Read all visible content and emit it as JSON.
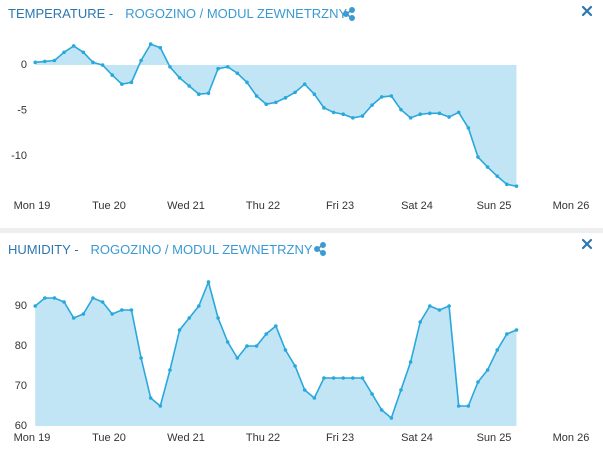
{
  "chart_data": [
    {
      "type": "area",
      "title": "TEMPERATURE -",
      "subtitle": "ROGOZINO / MODUL ZEWNETRZNY",
      "color": "#29a8dc",
      "fill": "#c2e5f5",
      "grid": false,
      "xlim": [
        0,
        168
      ],
      "xticks": [
        {
          "value": 0,
          "label": "Mon 19"
        },
        {
          "value": 24,
          "label": "Tue 20"
        },
        {
          "value": 48,
          "label": "Wed 21"
        },
        {
          "value": 72,
          "label": "Thu 22"
        },
        {
          "value": 96,
          "label": "Fri 23"
        },
        {
          "value": 120,
          "label": "Sat 24"
        },
        {
          "value": 144,
          "label": "Sun 25"
        },
        {
          "value": 168,
          "label": "Mon 26"
        }
      ],
      "ylim": [
        -13.5,
        3.3
      ],
      "yticks": [
        -10,
        -5,
        0
      ],
      "x": [
        1,
        4,
        7,
        10,
        13,
        16,
        19,
        22,
        25,
        28,
        31,
        34,
        37,
        40,
        43,
        46,
        49,
        52,
        55,
        58,
        61,
        64,
        67,
        70,
        73,
        76,
        79,
        82,
        85,
        88,
        91,
        94,
        97,
        100,
        103,
        106,
        109,
        112,
        115,
        118,
        121,
        124,
        127,
        130,
        133,
        136,
        139,
        142,
        145,
        148,
        151
      ],
      "values": [
        0.3,
        0.4,
        0.5,
        1.4,
        2.1,
        1.4,
        0.3,
        0,
        -1.1,
        -2.1,
        -1.9,
        0.5,
        2.3,
        1.9,
        -0.2,
        -1.4,
        -2.3,
        -3.2,
        -3.1,
        -0.4,
        -0.2,
        -0.9,
        -1.9,
        -3.4,
        -4.3,
        -4.1,
        -3.6,
        -3.0,
        -2.1,
        -3.2,
        -4.7,
        -5.2,
        -5.4,
        -5.8,
        -5.6,
        -4.4,
        -3.5,
        -3.4,
        -4.9,
        -5.8,
        -5.4,
        -5.3,
        -5.3,
        -5.7,
        -5.2,
        -6.9,
        -10.1,
        -11.2,
        -12.2,
        -13.1,
        -13.3
      ]
    },
    {
      "type": "area",
      "title": "HUMIDITY -",
      "subtitle": "ROGOZINO / MODUL ZEWNETRZNY",
      "color": "#29a8dc",
      "fill": "#c2e5f5",
      "grid": false,
      "xlim": [
        0,
        168
      ],
      "xticks": [
        {
          "value": 0,
          "label": "Mon 19"
        },
        {
          "value": 24,
          "label": "Tue 20"
        },
        {
          "value": 48,
          "label": "Wed 21"
        },
        {
          "value": 72,
          "label": "Thu 22"
        },
        {
          "value": 96,
          "label": "Fri 23"
        },
        {
          "value": 120,
          "label": "Sat 24"
        },
        {
          "value": 144,
          "label": "Sun 25"
        },
        {
          "value": 168,
          "label": "Mon 26"
        }
      ],
      "ylim": [
        60,
        97.5
      ],
      "yticks": [
        60,
        70,
        80,
        90
      ],
      "x": [
        1,
        4,
        7,
        10,
        13,
        16,
        19,
        22,
        25,
        28,
        31,
        34,
        37,
        40,
        43,
        46,
        49,
        52,
        55,
        58,
        61,
        64,
        67,
        70,
        73,
        76,
        79,
        82,
        85,
        88,
        91,
        94,
        97,
        100,
        103,
        106,
        109,
        112,
        115,
        118,
        121,
        124,
        127,
        130,
        133,
        136,
        139,
        142,
        145,
        148,
        151
      ],
      "values": [
        90,
        92,
        92,
        91,
        87,
        88,
        92,
        91,
        88,
        89,
        89,
        77,
        67,
        65,
        74,
        84,
        87,
        90,
        96,
        87,
        81,
        77,
        80,
        80,
        83,
        85,
        79,
        75,
        69,
        67,
        72,
        72,
        72,
        72,
        72,
        68,
        64,
        62,
        69,
        76,
        86,
        90,
        89,
        90,
        65,
        65,
        71,
        74,
        79,
        83,
        84
      ]
    }
  ]
}
